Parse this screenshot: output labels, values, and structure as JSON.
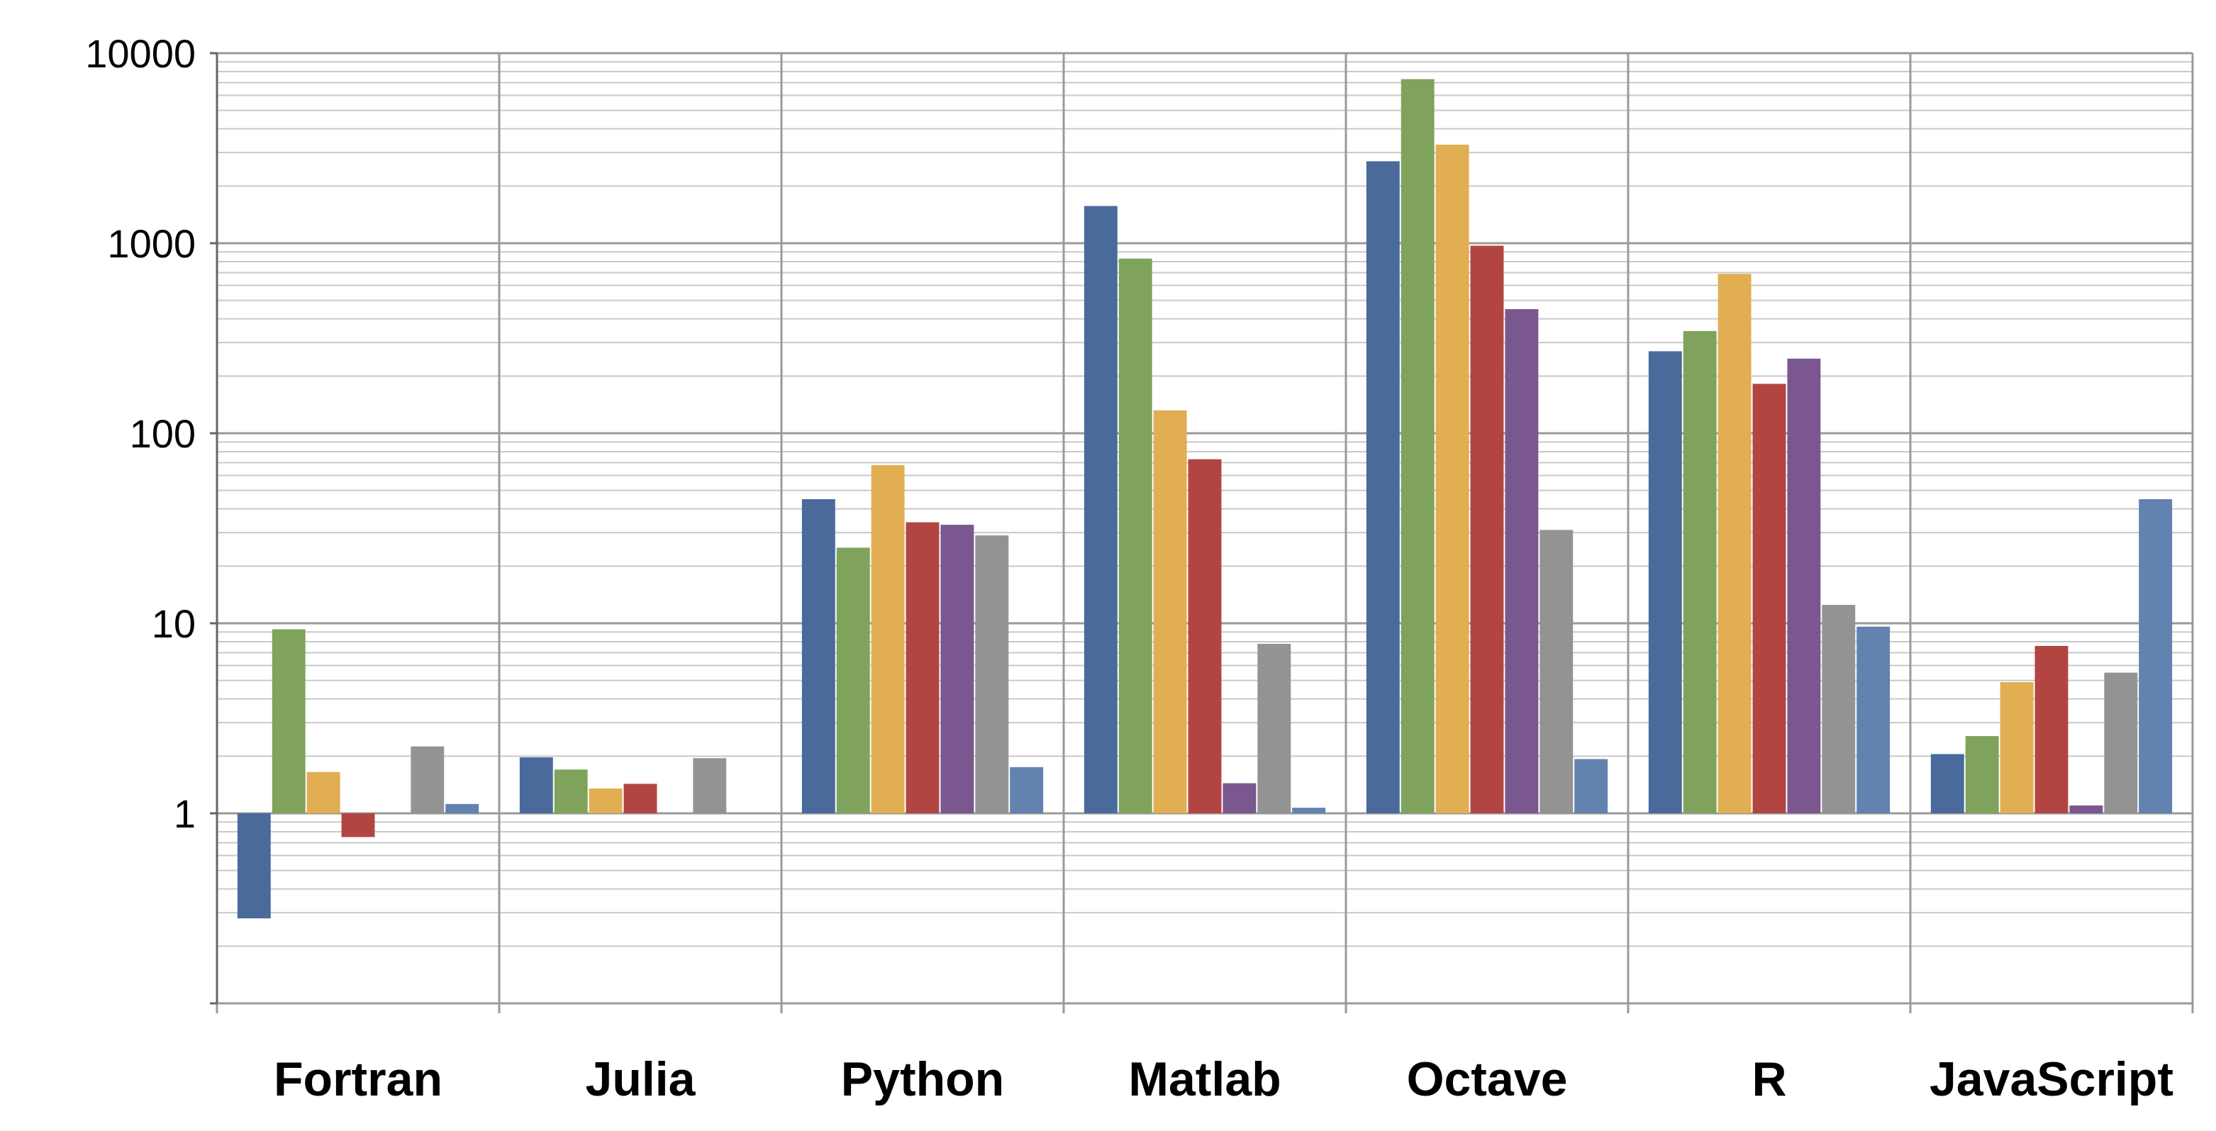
{
  "chart_data": {
    "type": "bar",
    "scale": "log",
    "ylim": [
      0.1,
      10000
    ],
    "yticks": [
      1,
      10,
      100,
      1000,
      10000
    ],
    "ytick_labels": [
      "1",
      "10",
      "100",
      "1000",
      "10000"
    ],
    "grid": true,
    "legend": "none",
    "baseline": 1,
    "categories": [
      "Fortran",
      "Julia",
      "Python",
      "Matlab",
      "Octave",
      "R",
      "JavaScript"
    ],
    "series": [
      {
        "color": "#4a6a9c",
        "values": [
          0.28,
          1.97,
          45.0,
          1570,
          2700,
          270,
          2.05
        ]
      },
      {
        "color": "#7fa35c",
        "values": [
          9.3,
          1.7,
          25.0,
          830,
          7300,
          345,
          2.55
        ]
      },
      {
        "color": "#e1ae52",
        "values": [
          1.65,
          1.35,
          68,
          132,
          3300,
          690,
          4.9
        ]
      },
      {
        "color": "#b24542",
        "values": [
          0.75,
          1.43,
          34.0,
          73,
          970,
          182,
          7.6
        ]
      },
      {
        "color": "#7b5790",
        "values": [
          null,
          null,
          33.0,
          1.44,
          450,
          247,
          1.1
        ]
      },
      {
        "color": "#939393",
        "values": [
          2.25,
          1.95,
          29.0,
          7.8,
          31,
          12.5,
          5.5
        ]
      },
      {
        "color": "#6282b0",
        "values": [
          1.12,
          null,
          1.75,
          1.07,
          1.93,
          9.6,
          45.0
        ]
      }
    ]
  }
}
